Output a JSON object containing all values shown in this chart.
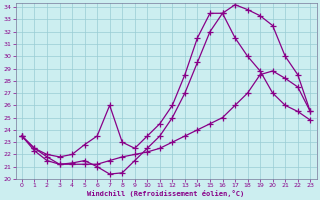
{
  "xlabel": "Windchill (Refroidissement éolien,°C)",
  "xlim": [
    -0.5,
    23.5
  ],
  "ylim": [
    20,
    34.3
  ],
  "xticks": [
    0,
    1,
    2,
    3,
    4,
    5,
    6,
    7,
    8,
    9,
    10,
    11,
    12,
    13,
    14,
    15,
    16,
    17,
    18,
    19,
    20,
    21,
    22,
    23
  ],
  "yticks": [
    20,
    21,
    22,
    23,
    24,
    25,
    26,
    27,
    28,
    29,
    30,
    31,
    32,
    33,
    34
  ],
  "background_color": "#cceef0",
  "grid_color": "#99ccd4",
  "line_color": "#880088",
  "curve1_x": [
    0,
    1,
    2,
    3,
    4,
    5,
    6,
    7,
    8,
    9,
    10,
    11,
    12,
    13,
    14,
    15,
    16,
    17,
    18,
    19,
    20,
    21,
    22,
    23
  ],
  "curve1_y": [
    23.5,
    22.5,
    21.8,
    21.2,
    21.3,
    21.5,
    21.0,
    20.4,
    20.5,
    21.5,
    22.5,
    23.5,
    25.0,
    27.0,
    29.5,
    32.0,
    33.5,
    34.2,
    33.8,
    33.3,
    32.5,
    30.0,
    28.5,
    25.5
  ],
  "curve2_x": [
    0,
    1,
    2,
    3,
    4,
    5,
    6,
    7,
    8,
    9,
    10,
    11,
    12,
    13,
    14,
    15,
    16,
    17,
    18,
    19,
    20,
    21,
    22,
    23
  ],
  "curve2_y": [
    23.5,
    22.5,
    22.0,
    21.8,
    22.0,
    22.8,
    23.5,
    26.0,
    23.0,
    22.5,
    23.5,
    24.5,
    26.0,
    28.5,
    31.5,
    33.5,
    33.5,
    31.5,
    30.0,
    28.8,
    27.0,
    26.0,
    25.5,
    24.8
  ],
  "curve3_x": [
    0,
    1,
    2,
    3,
    4,
    5,
    6,
    7,
    8,
    9,
    10,
    11,
    12,
    13,
    14,
    15,
    16,
    17,
    18,
    19,
    20,
    21,
    22,
    23
  ],
  "curve3_y": [
    23.5,
    22.3,
    21.5,
    21.2,
    21.2,
    21.2,
    21.2,
    21.5,
    21.8,
    22.0,
    22.2,
    22.5,
    23.0,
    23.5,
    24.0,
    24.5,
    25.0,
    26.0,
    27.0,
    28.5,
    28.8,
    28.2,
    27.5,
    25.5
  ]
}
